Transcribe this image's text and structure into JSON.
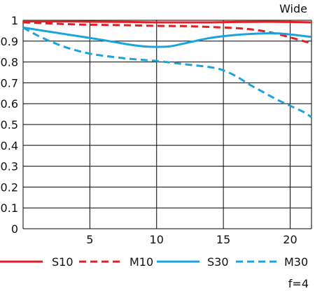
{
  "chart_data": {
    "type": "line",
    "title": "Wide",
    "footnote": "f=4",
    "xlabel": "",
    "ylabel": "",
    "xlim": [
      0,
      21.6
    ],
    "ylim": [
      0,
      1
    ],
    "xticks": [
      5,
      10,
      15,
      20
    ],
    "yticks": [
      0,
      0.1,
      0.2,
      0.3,
      0.4,
      0.5,
      0.6,
      0.7,
      0.8,
      0.9,
      1
    ],
    "grid": true,
    "legend_position": "bottom",
    "series": [
      {
        "name": "S10",
        "color": "#e31e24",
        "dash": "solid",
        "x": [
          0,
          2,
          4,
          6,
          8,
          10,
          12,
          14,
          16,
          18,
          20,
          21.6
        ],
        "y": [
          0.995,
          0.995,
          0.994,
          0.993,
          0.992,
          0.99,
          0.99,
          0.99,
          0.992,
          0.993,
          0.992,
          0.99
        ]
      },
      {
        "name": "M10",
        "color": "#e31e24",
        "dash": "dashed",
        "x": [
          0,
          2,
          4,
          6,
          8,
          10,
          12,
          14,
          16,
          17,
          18,
          19,
          20,
          21,
          21.6
        ],
        "y": [
          0.99,
          0.985,
          0.98,
          0.978,
          0.976,
          0.973,
          0.972,
          0.968,
          0.962,
          0.957,
          0.948,
          0.935,
          0.918,
          0.9,
          0.89
        ]
      },
      {
        "name": "S30",
        "color": "#1aa3df",
        "dash": "solid",
        "x": [
          0,
          2,
          4,
          6,
          8,
          9,
          10,
          11,
          12,
          14,
          16,
          18,
          19,
          20,
          21.6
        ],
        "y": [
          0.965,
          0.945,
          0.925,
          0.905,
          0.883,
          0.875,
          0.872,
          0.875,
          0.888,
          0.915,
          0.93,
          0.937,
          0.937,
          0.932,
          0.92
        ]
      },
      {
        "name": "M30",
        "color": "#1aa3df",
        "dash": "dashed",
        "x": [
          0,
          1,
          2,
          3,
          4,
          5,
          6,
          8,
          10,
          12,
          14,
          15,
          16,
          17,
          18,
          19,
          20,
          21,
          21.6
        ],
        "y": [
          0.965,
          0.93,
          0.9,
          0.875,
          0.855,
          0.84,
          0.83,
          0.815,
          0.805,
          0.79,
          0.775,
          0.76,
          0.73,
          0.69,
          0.655,
          0.62,
          0.59,
          0.56,
          0.535
        ]
      }
    ]
  }
}
